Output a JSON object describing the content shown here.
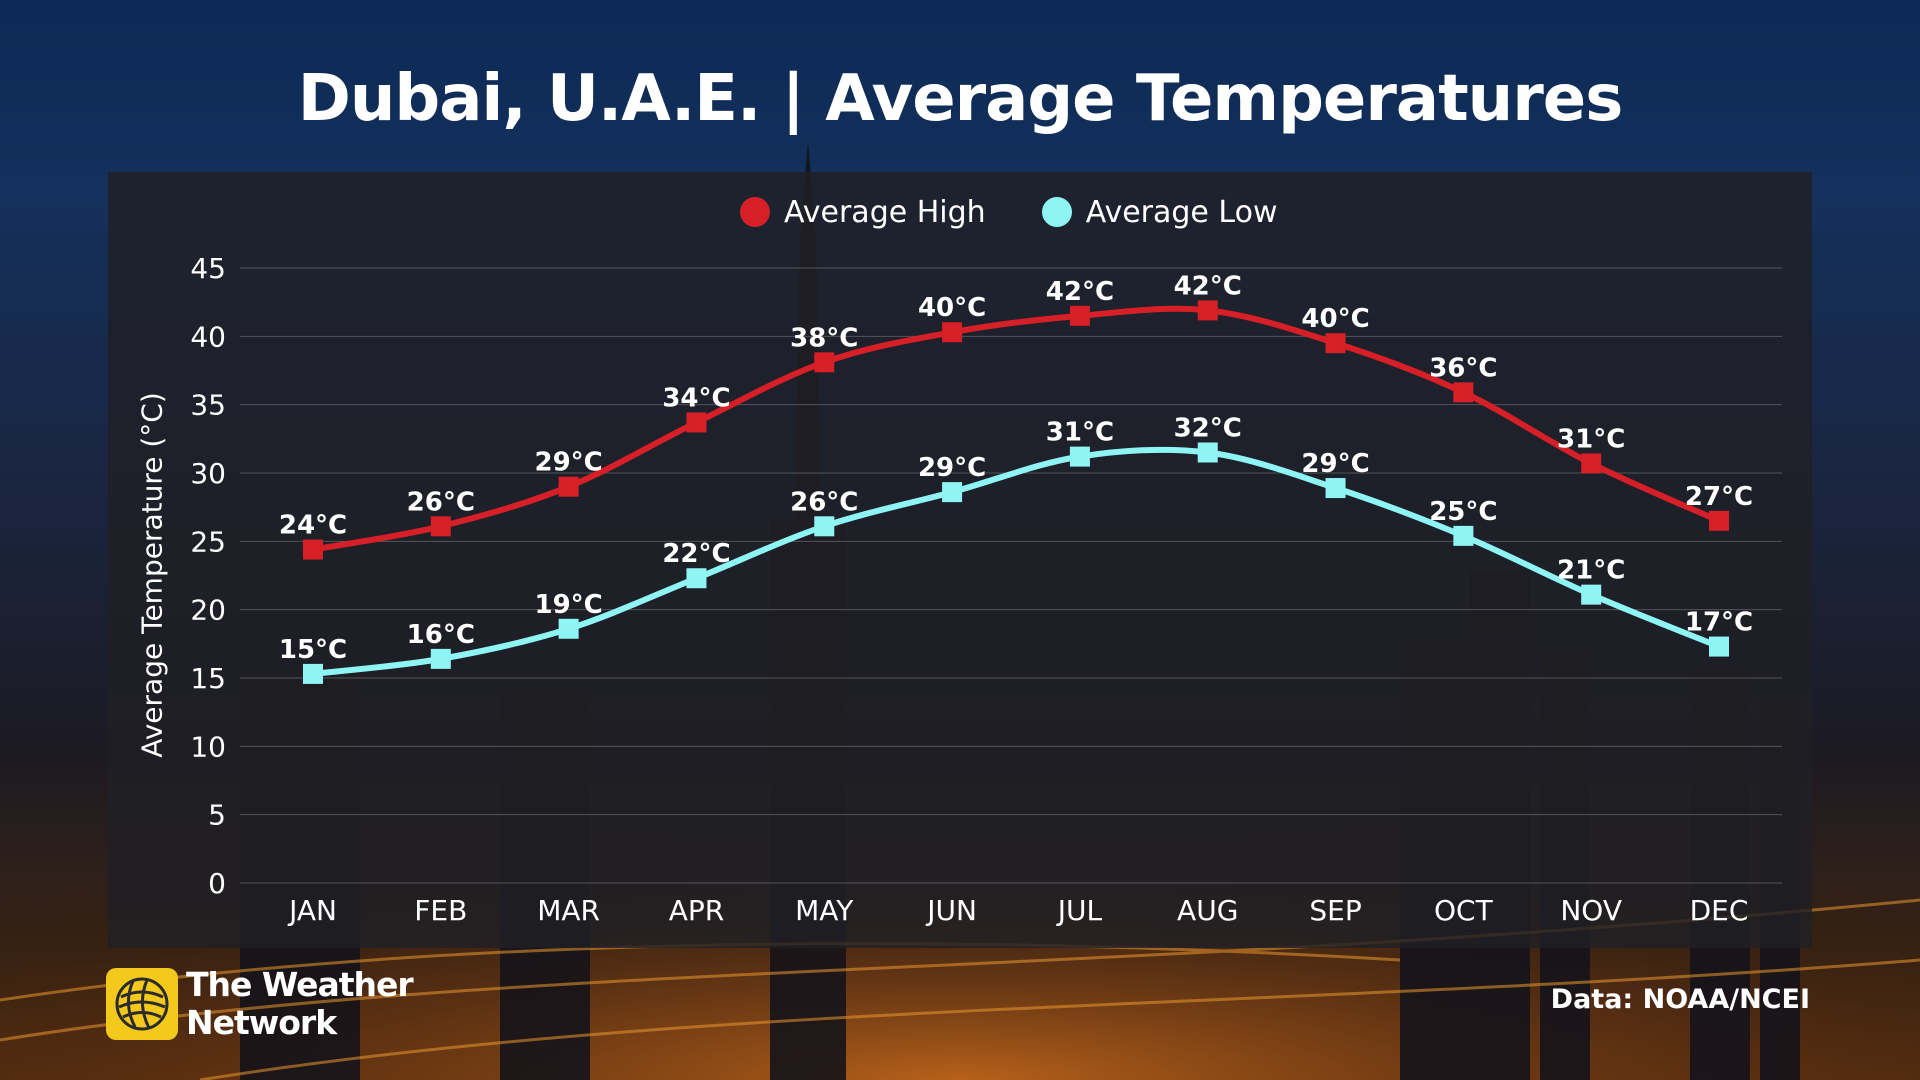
{
  "header": {
    "title": "Dubai, U.A.E. | Average Temperatures"
  },
  "footer": {
    "brand_line1": "The Weather",
    "brand_line2": "Network",
    "source": "Data: NOAA/NCEI"
  },
  "colors": {
    "high": "#d61f26",
    "low": "#8ff4f4",
    "brand": "#f3c91c"
  },
  "chart_data": {
    "type": "line",
    "title": "Dubai, U.A.E. | Average Temperatures",
    "xlabel": "",
    "ylabel": "Average Temperature (°C)",
    "ylim": [
      0,
      45
    ],
    "yticks": [
      0,
      5,
      10,
      15,
      20,
      25,
      30,
      35,
      40,
      45
    ],
    "grid": true,
    "legend_position": "top-center",
    "categories": [
      "JAN",
      "FEB",
      "MAR",
      "APR",
      "MAY",
      "JUN",
      "JUL",
      "AUG",
      "SEP",
      "OCT",
      "NOV",
      "DEC"
    ],
    "series": [
      {
        "name": "Average High",
        "color": "#d61f26",
        "values": [
          24.4,
          26.1,
          29.0,
          33.7,
          38.1,
          40.3,
          41.5,
          41.9,
          39.5,
          35.9,
          30.7,
          26.5
        ],
        "labels": [
          "24°C",
          "26°C",
          "29°C",
          "34°C",
          "38°C",
          "40°C",
          "42°C",
          "42°C",
          "40°C",
          "36°C",
          "31°C",
          "27°C"
        ]
      },
      {
        "name": "Average Low",
        "color": "#8ff4f4",
        "values": [
          15.3,
          16.4,
          18.6,
          22.3,
          26.1,
          28.6,
          31.2,
          31.5,
          28.9,
          25.4,
          21.1,
          17.3
        ],
        "labels": [
          "15°C",
          "16°C",
          "19°C",
          "22°C",
          "26°C",
          "29°C",
          "31°C",
          "32°C",
          "29°C",
          "25°C",
          "21°C",
          "17°C"
        ]
      }
    ]
  }
}
